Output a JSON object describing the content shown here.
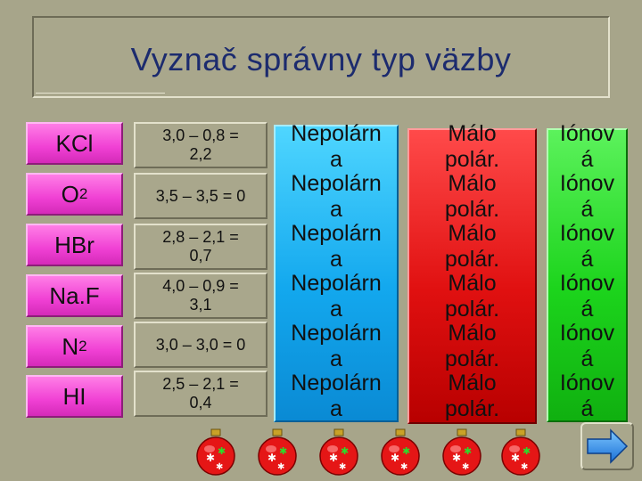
{
  "title": "Vyznač správny typ väzby",
  "rows": [
    {
      "formula": "KCl",
      "sub": "",
      "en_line1": "3,0 – 0,8 =",
      "en_line2": "2,2"
    },
    {
      "formula": "O",
      "sub": "2",
      "en_line1": "3,5 – 3,5 = 0",
      "en_line2": ""
    },
    {
      "formula": "HBr",
      "sub": "",
      "en_line1": "2,8 – 2,1 =",
      "en_line2": "0,7"
    },
    {
      "formula": "Na.F",
      "sub": "",
      "en_line1": "4,0 – 0,9 =",
      "en_line2": "3,1"
    },
    {
      "formula": "N",
      "sub": "2",
      "en_line1": "3,0 – 3,0 = 0",
      "en_line2": ""
    },
    {
      "formula": "HI",
      "sub": "",
      "en_line1": "2,5 – 2,1 =",
      "en_line2": "0,4"
    }
  ],
  "bond_buttons": {
    "nonpolar": {
      "line1": "Nepolárn",
      "line2": "a"
    },
    "slightly_polar": {
      "line1": "Málo",
      "line2": "polár."
    },
    "ionic": {
      "line1": "Iónov",
      "line2": "á"
    }
  },
  "colors": {
    "background": "#a7a58a",
    "title": "#1c2b6e",
    "formula_button": "#f040d4",
    "nonpolar_button": "#13a8ee",
    "slightly_polar_button": "#e01010",
    "ionic_button": "#1cd41c"
  },
  "icons": {
    "ornament": "christmas-ornament-icon",
    "next": "arrow-right-icon"
  }
}
